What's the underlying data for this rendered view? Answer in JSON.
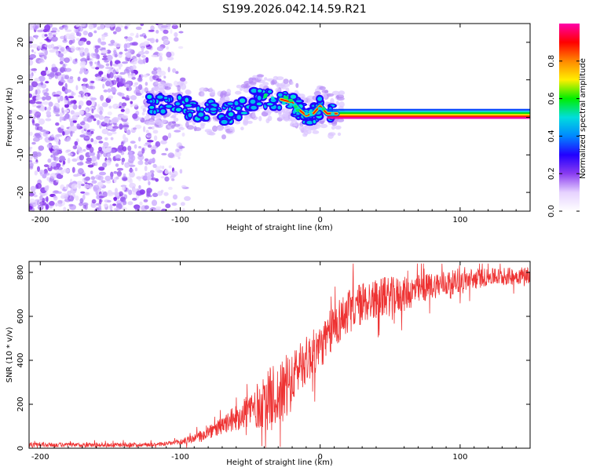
{
  "title": "S199.2026.042.14.59.R21",
  "colors": {
    "series": "#ee3333",
    "frame": "#000000",
    "noise": "#8a3cf0",
    "colorbar_stops": [
      "#ffffff",
      "#e6d2ff",
      "#8a3cf0",
      "#2200ff",
      "#0088ff",
      "#00dddd",
      "#00ee00",
      "#ffee00",
      "#ff8800",
      "#ff0000",
      "#ff00aa"
    ]
  },
  "chart_data": [
    {
      "type": "heatmap",
      "id": "spectrogram",
      "xlabel": "Height of straight line (km)",
      "ylabel": "Frequency (Hz)",
      "xlim": [
        -208,
        150
      ],
      "ylim": [
        -25,
        25
      ],
      "xticks": [
        -200,
        -100,
        0,
        100
      ],
      "yticks": [
        -20,
        -10,
        0,
        10,
        20
      ],
      "xtick_labels": [
        "-200",
        "-100",
        "0",
        "100"
      ],
      "ytick_labels": [
        "-20",
        "-10",
        "0",
        "10",
        "20"
      ],
      "noise_region_x": [
        -208,
        -120
      ],
      "carrier_track": {
        "x": [
          -122,
          -110,
          -100,
          -90,
          -80,
          -70,
          -60,
          -50,
          -45,
          -40,
          -30,
          -20,
          -15,
          -10,
          -5,
          0,
          5,
          10,
          20,
          150
        ],
        "freq": [
          4,
          3,
          4,
          1,
          2,
          0.5,
          2,
          4,
          6,
          5,
          5,
          4,
          2,
          0.5,
          1,
          3,
          1,
          1,
          1,
          1
        ]
      },
      "colorbar": {
        "label": "Normalized spectral amplitude",
        "range": [
          0,
          1
        ],
        "ticks": [
          0.0,
          0.2,
          0.4,
          0.6,
          0.8
        ],
        "tick_labels": [
          "0.0",
          "0.2",
          "0.4",
          "0.6",
          "0.8"
        ]
      }
    },
    {
      "type": "line",
      "id": "snr",
      "xlabel": "Height of straight line (km)",
      "ylabel": "SNR (10 * v/v)",
      "xlim": [
        -208,
        150
      ],
      "ylim": [
        0,
        850
      ],
      "xticks": [
        -200,
        -100,
        0,
        100
      ],
      "yticks": [
        0,
        200,
        400,
        600,
        800
      ],
      "xtick_labels": [
        "-200",
        "-100",
        "0",
        "100"
      ],
      "ytick_labels": [
        "0",
        "200",
        "400",
        "600",
        "800"
      ],
      "series": [
        {
          "name": "SNR",
          "x": [
            -208,
            -190,
            -170,
            -150,
            -130,
            -110,
            -100,
            -90,
            -80,
            -70,
            -60,
            -50,
            -40,
            -35,
            -30,
            -25,
            -20,
            -15,
            -10,
            -5,
            0,
            5,
            10,
            20,
            30,
            40,
            50,
            60,
            70,
            80,
            90,
            100,
            110,
            120,
            130,
            140,
            150
          ],
          "base": [
            15,
            15,
            15,
            15,
            16,
            20,
            28,
            45,
            70,
            100,
            140,
            180,
            200,
            230,
            240,
            260,
            300,
            380,
            400,
            430,
            460,
            500,
            560,
            620,
            660,
            680,
            690,
            700,
            720,
            740,
            750,
            760,
            770,
            780,
            780,
            785,
            790
          ],
          "noise": [
            10,
            10,
            10,
            10,
            10,
            10,
            15,
            20,
            30,
            40,
            60,
            90,
            120,
            150,
            140,
            150,
            120,
            120,
            110,
            110,
            100,
            100,
            110,
            100,
            100,
            90,
            90,
            80,
            70,
            60,
            60,
            50,
            50,
            40,
            40,
            40,
            40
          ]
        }
      ]
    }
  ]
}
